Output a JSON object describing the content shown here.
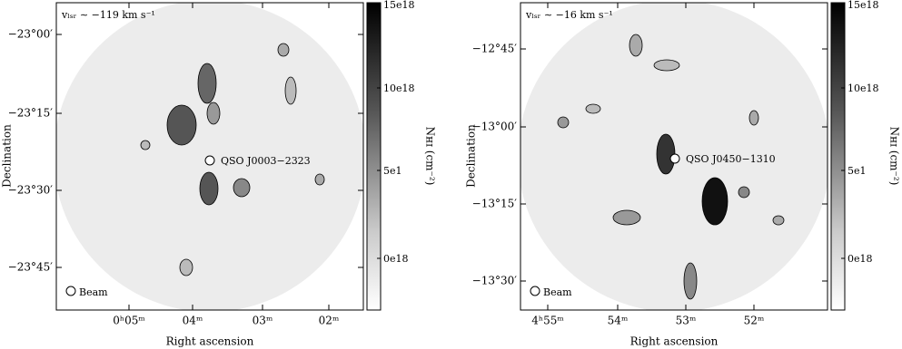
{
  "panels": [
    {
      "velocity": "vₗₛᵣ ∼ −119 km s⁻¹",
      "source": "QSO J0003−2323",
      "beam": "Beam",
      "x_axis": "Right ascension",
      "y_axis": "Declination",
      "xticks": [
        "0ʰ05ᵐ",
        "04ᵐ",
        "03ᵐ",
        "02ᵐ"
      ],
      "yticks": [
        "−23°00′",
        "−23°15′",
        "−23°30′",
        "−23°45′"
      ],
      "colorbar": {
        "label": "Nʜɪ (cm⁻²)",
        "ticks": [
          "15e18",
          "10e18",
          "5e1",
          "0e18"
        ]
      }
    },
    {
      "velocity": "vₗₛᵣ ∼ −16 km s⁻¹",
      "source": "QSO J0450−1310",
      "beam": "Beam",
      "x_axis": "Right ascension",
      "y_axis": "Declination",
      "xticks": [
        "4ʰ55ᵐ",
        "54ᵐ",
        "53ᵐ",
        "52ᵐ"
      ],
      "yticks": [
        "−12°45′",
        "−13°00′",
        "−13°15′",
        "−13°30′"
      ],
      "colorbar": {
        "label": "Nʜɪ (cm⁻²)",
        "ticks": [
          "15e18",
          "10e18",
          "5e1",
          "0e18"
        ]
      }
    }
  ]
}
